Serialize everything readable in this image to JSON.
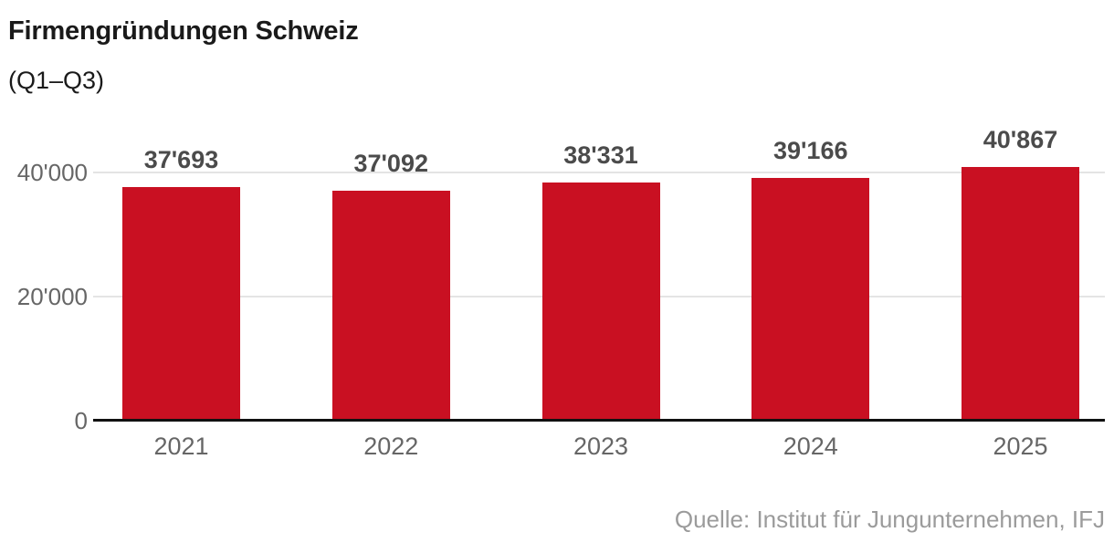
{
  "header": {
    "title": "Firmengründungen Schweiz",
    "subtitle": "(Q1–Q3)"
  },
  "chart_data": {
    "type": "bar",
    "title": "Firmengründungen Schweiz",
    "subtitle": "(Q1–Q3)",
    "categories": [
      "2021",
      "2022",
      "2023",
      "2024",
      "2025"
    ],
    "values": [
      37693,
      37092,
      38331,
      39166,
      40867
    ],
    "value_labels": [
      "37'693",
      "37'092",
      "38'331",
      "39'166",
      "40'867"
    ],
    "xlabel": "",
    "ylabel": "",
    "ylim": [
      0,
      40000
    ],
    "yticks": [
      {
        "value": 0,
        "label": "0"
      },
      {
        "value": 20000,
        "label": "20'000"
      },
      {
        "value": 40000,
        "label": "40'000"
      }
    ],
    "grid": "horizontal",
    "legend": "none",
    "source": "Quelle: Institut für Jungunternehmen, IFJ"
  },
  "footer": {
    "source": "Quelle: Institut für Jungunternehmen, IFJ"
  },
  "colors": {
    "bar": "#c91022",
    "grid": "#e4e4e4",
    "axis_line": "#111111",
    "title": "#1a1a1a",
    "value_label": "#4b4b4b",
    "tick_label": "#666666",
    "source": "#9b9b9b"
  }
}
